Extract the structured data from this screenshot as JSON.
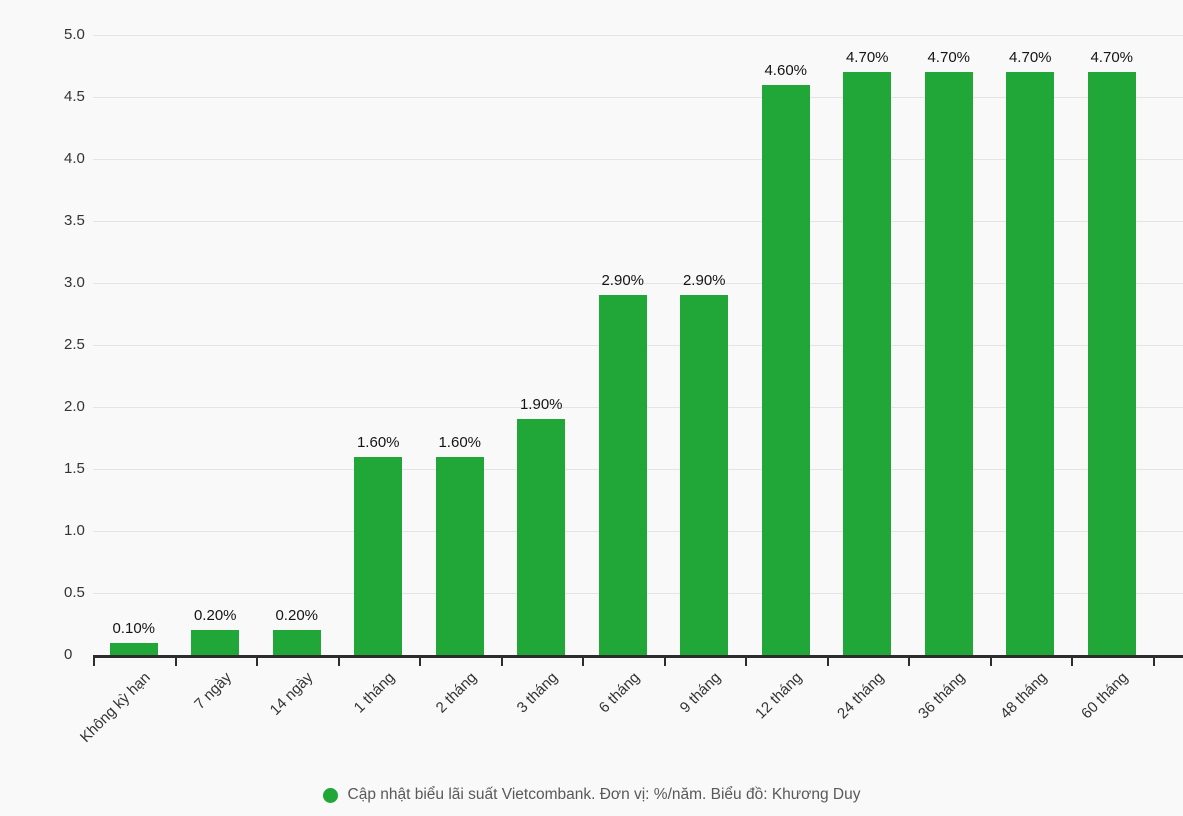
{
  "chart_data": {
    "type": "bar",
    "title": "",
    "categories": [
      "Không kỳ hạn",
      "7 ngày",
      "14 ngày",
      "1 tháng",
      "2 tháng",
      "3 tháng",
      "6 tháng",
      "9 tháng",
      "12 tháng",
      "24 tháng",
      "36 tháng",
      "48 tháng",
      "60 tháng"
    ],
    "values": [
      0.1,
      0.2,
      0.2,
      1.6,
      1.6,
      1.9,
      2.9,
      2.9,
      4.6,
      4.7,
      4.7,
      4.7,
      4.7
    ],
    "value_labels": [
      "0.10%",
      "0.20%",
      "0.20%",
      "1.60%",
      "1.60%",
      "1.90%",
      "2.90%",
      "2.90%",
      "4.60%",
      "4.70%",
      "4.70%",
      "4.70%",
      "4.70%"
    ],
    "xlabel": "",
    "ylabel": "",
    "ylim": [
      0,
      5.0
    ],
    "ytick_step": 0.5,
    "yticks": [
      "0",
      "0.5",
      "1.0",
      "1.5",
      "2.0",
      "2.5",
      "3.0",
      "3.5",
      "4.0",
      "4.5",
      "5.0"
    ],
    "grid": true,
    "legend": {
      "position": "bottom",
      "marker": "circle",
      "label": "Cập nhật biểu lãi suất Vietcombank. Đơn vị: %/năm. Biểu đồ: Khương Duy"
    },
    "colors": {
      "bar": "#21a737",
      "background": "#f9f9f9",
      "gridline": "#e4e4e4",
      "axis": "#2d2d2d",
      "value_label": "#141414",
      "tick_label": "#333333",
      "legend_text": "#595959"
    }
  }
}
